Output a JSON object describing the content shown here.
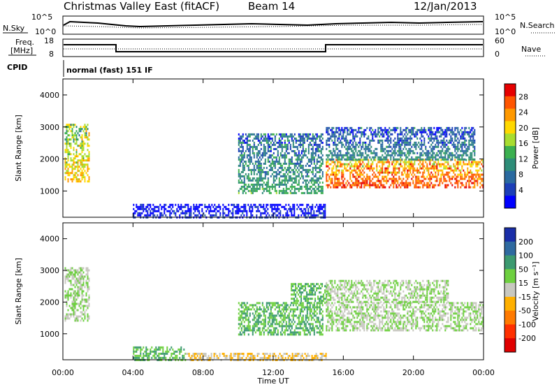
{
  "header": {
    "title": "Christmas Valley East (fitACF)",
    "beam": "Beam 14",
    "date": "12/Jan/2013"
  },
  "top_panels": {
    "sky_label": "N.Sky",
    "sky_ticks": [
      "10^5",
      "10^0"
    ],
    "search_label": "N.Search",
    "freq_label_1": "Freq.",
    "freq_label_2": "[MHz]",
    "freq_ticks": [
      "18",
      "8"
    ],
    "nave_label": "Nave",
    "nave_ticks": [
      "60",
      "0"
    ],
    "cpid_label": "CPID",
    "cpid_text": "normal (fast) 151 IF"
  },
  "colorbars": {
    "power_label": "Power [dB]",
    "power_ticks": [
      "28",
      "24",
      "20",
      "16",
      "12",
      "8",
      "4"
    ],
    "power_colors": [
      "#e60000",
      "#ff5500",
      "#ff9900",
      "#ffd800",
      "#a8dd30",
      "#3cb050",
      "#2e8d78",
      "#2a6aa0",
      "#1c3fb8",
      "#0000ff"
    ],
    "velocity_label": "Velocity [m s⁻¹]",
    "velocity_ticks": [
      "200",
      "100",
      "50",
      "15",
      "-15",
      "-50",
      "-100",
      "-200"
    ],
    "velocity_colors": [
      "#1a2ea8",
      "#2f6aa0",
      "#3c9a70",
      "#6ed040",
      "#c8c8c0",
      "#ffb000",
      "#ff7a00",
      "#ff3000",
      "#e00000"
    ]
  },
  "chart_data": [
    {
      "type": "heatmap",
      "title": "",
      "xlabel": "",
      "ylabel": "Slant Range [km]",
      "x_tick_labels": [
        "00:00",
        "04:00",
        "08:00",
        "12:00",
        "16:00",
        "20:00",
        "00:00"
      ],
      "y_tick_labels": [
        "1000",
        "2000",
        "3000",
        "4000"
      ],
      "xlim_hours": [
        0,
        24
      ],
      "ylim_km": [
        180,
        4500
      ],
      "colorbar": "Power [dB]",
      "echo_regions": [
        {
          "t_start": 0.1,
          "t_end": 1.5,
          "range_low_km": 1300,
          "range_high_km": 3100,
          "power_db": 22
        },
        {
          "t_start": 10.0,
          "t_end": 14.8,
          "range_low_km": 950,
          "range_high_km": 2800,
          "power_db": 14
        },
        {
          "t_start": 15.0,
          "t_end": 24.0,
          "range_low_km": 1100,
          "range_high_km": 2000,
          "power_db": 28
        },
        {
          "t_start": 15.0,
          "t_end": 23.5,
          "range_low_km": 2000,
          "range_high_km": 3000,
          "power_db": 12
        },
        {
          "t_start": 4.0,
          "t_end": 15.0,
          "range_low_km": 180,
          "range_high_km": 600,
          "power_db": 6
        }
      ]
    },
    {
      "type": "heatmap",
      "title": "",
      "xlabel": "Time UT",
      "ylabel": "Slant Range [km]",
      "x_tick_labels": [
        "00:00",
        "04:00",
        "08:00",
        "12:00",
        "16:00",
        "20:00",
        "00:00"
      ],
      "y_tick_labels": [
        "1000",
        "2000",
        "3000",
        "4000"
      ],
      "xlim_hours": [
        0,
        24
      ],
      "ylim_km": [
        180,
        4500
      ],
      "colorbar": "Velocity [m s⁻¹]",
      "echo_regions": [
        {
          "t_start": 0.1,
          "t_end": 1.5,
          "range_low_km": 1400,
          "range_high_km": 3100,
          "velocity_ms": 0
        },
        {
          "t_start": 10.0,
          "t_end": 14.8,
          "range_low_km": 950,
          "range_high_km": 2000,
          "velocity_ms": 30
        },
        {
          "t_start": 13.0,
          "t_end": 15.0,
          "range_low_km": 2000,
          "range_high_km": 2600,
          "velocity_ms": 30
        },
        {
          "t_start": 15.0,
          "t_end": 24.0,
          "range_low_km": 1100,
          "range_high_km": 2000,
          "velocity_ms": 0
        },
        {
          "t_start": 15.0,
          "t_end": 22.0,
          "range_low_km": 2000,
          "range_high_km": 2700,
          "velocity_ms": 0
        },
        {
          "t_start": 4.0,
          "t_end": 7.0,
          "range_low_km": 200,
          "range_high_km": 600,
          "velocity_ms": 30
        },
        {
          "t_start": 7.0,
          "t_end": 15.0,
          "range_low_km": 200,
          "range_high_km": 400,
          "velocity_ms": -30
        }
      ]
    }
  ]
}
